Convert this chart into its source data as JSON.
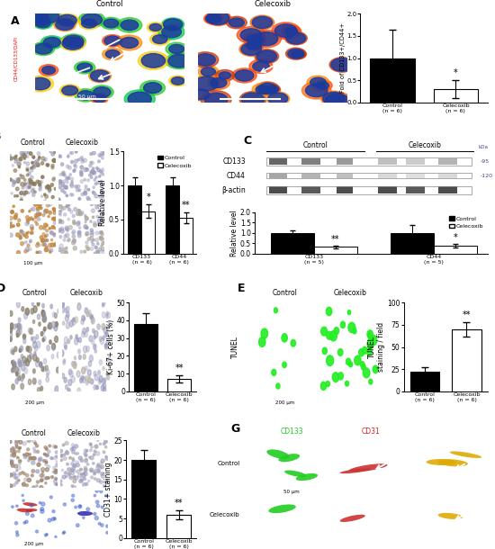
{
  "panel_A": {
    "bar_values": [
      1.0,
      0.3
    ],
    "bar_errors": [
      0.65,
      0.2
    ],
    "bar_colors": [
      "#000000",
      "#ffffff"
    ],
    "categories": [
      "Control\n(n = 6)",
      "Celecoxib\n(n = 6)"
    ],
    "ylabel": "Fold of CD133+/CD44+",
    "ylim": [
      0,
      2.0
    ],
    "yticks": [
      0,
      0.5,
      1.0,
      1.5,
      2.0
    ],
    "sig_text": "*",
    "sig_idx": 1
  },
  "panel_B": {
    "bar_values": [
      1.0,
      0.62,
      1.0,
      0.52
    ],
    "bar_errors": [
      0.12,
      0.1,
      0.12,
      0.08
    ],
    "bar_colors": [
      "#000000",
      "#ffffff",
      "#000000",
      "#ffffff"
    ],
    "categories": [
      "CD133\n(n = 6)",
      "CD44\n(n = 6)"
    ],
    "ylabel": "Relative level",
    "ylim": [
      0,
      1.5
    ],
    "yticks": [
      0,
      0.5,
      1.0,
      1.5
    ],
    "sig": [
      "*",
      "**"
    ],
    "legend": [
      "Control",
      "Celecoxib"
    ]
  },
  "panel_C": {
    "bar_values": [
      1.0,
      0.32,
      1.0,
      0.38
    ],
    "bar_errors": [
      0.12,
      0.07,
      0.4,
      0.1
    ],
    "bar_colors": [
      "#000000",
      "#ffffff",
      "#000000",
      "#ffffff"
    ],
    "categories": [
      "CD133\n(n = 5)",
      "CD44\n(n = 5)"
    ],
    "ylabel": "Relative level",
    "ylim": [
      0,
      2.0
    ],
    "yticks": [
      0,
      0.5,
      1.0,
      1.5,
      2.0
    ],
    "sig": [
      "**",
      "*"
    ],
    "legend": [
      "Control",
      "Celecoxib"
    ],
    "wb_labels": [
      "CD133",
      "CD44",
      "β-actin"
    ],
    "wb_kda": [
      "95",
      "120",
      ""
    ]
  },
  "panel_D": {
    "bar_values": [
      38.0,
      7.0
    ],
    "bar_errors": [
      6.0,
      2.0
    ],
    "bar_colors": [
      "#000000",
      "#ffffff"
    ],
    "categories": [
      "Control\n(n = 6)",
      "Celecoxib\n(n = 6)"
    ],
    "ylabel": "Ki-67+ cells (%)",
    "ylim": [
      0,
      50
    ],
    "yticks": [
      0,
      10,
      20,
      30,
      40,
      50
    ],
    "sig_text": "**",
    "sig_idx": 1
  },
  "panel_E": {
    "bar_values": [
      22.0,
      70.0
    ],
    "bar_errors": [
      5.0,
      8.0
    ],
    "bar_colors": [
      "#000000",
      "#ffffff"
    ],
    "categories": [
      "Control\n(n = 6)",
      "Celecoxib\n(n = 6)"
    ],
    "ylabel": "TUNEL\nstaining / field",
    "ylim": [
      0,
      100
    ],
    "yticks": [
      0,
      25,
      50,
      75,
      100
    ],
    "sig_text": "**",
    "sig_idx": 1
  },
  "panel_F": {
    "bar_values": [
      20.0,
      6.0
    ],
    "bar_errors": [
      2.5,
      1.2
    ],
    "bar_colors": [
      "#000000",
      "#ffffff"
    ],
    "categories": [
      "Control\n(n = 6)",
      "Celecoxib\n(n = 6)"
    ],
    "ylabel": "CD31+ staining",
    "ylim": [
      0,
      25
    ],
    "yticks": [
      0,
      5,
      10,
      15,
      20,
      25
    ],
    "sig_text": "**",
    "sig_idx": 1
  },
  "background_color": "#ffffff"
}
